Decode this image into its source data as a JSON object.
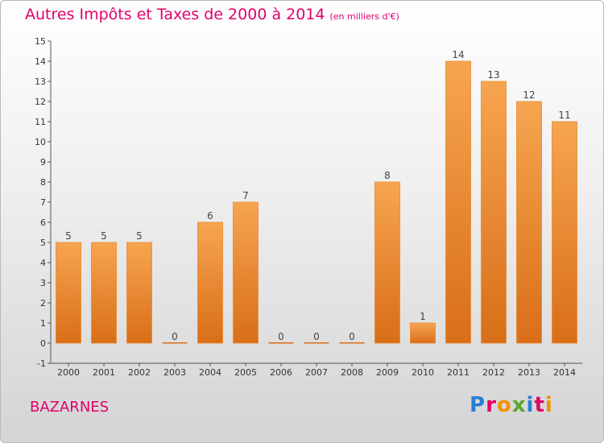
{
  "header": {
    "title": "Autres Impôts et Taxes de 2000 à 2014",
    "subtitle": "(en milliers d'€)"
  },
  "footer": {
    "place": "BAZARNES",
    "logo": "Proxiti"
  },
  "colors": {
    "title": "#e2006a",
    "bar_top": "#f7a550",
    "bar_bottom": "#d96e18"
  },
  "chart_data": {
    "type": "bar",
    "title": "Autres Impôts et Taxes de 2000 à 2014",
    "subtitle": "(en milliers d'€)",
    "categories": [
      "2000",
      "2001",
      "2002",
      "2003",
      "2004",
      "2005",
      "2006",
      "2007",
      "2008",
      "2009",
      "2010",
      "2011",
      "2012",
      "2013",
      "2014"
    ],
    "values": [
      5,
      5,
      5,
      0,
      6,
      7,
      0,
      0,
      0,
      8,
      1,
      14,
      13,
      12,
      11
    ],
    "ylim": [
      -1,
      15
    ],
    "yticks": [
      -1,
      0,
      1,
      2,
      3,
      4,
      5,
      6,
      7,
      8,
      9,
      10,
      11,
      12,
      13,
      14,
      15
    ],
    "grid": false,
    "data_labels": true
  }
}
